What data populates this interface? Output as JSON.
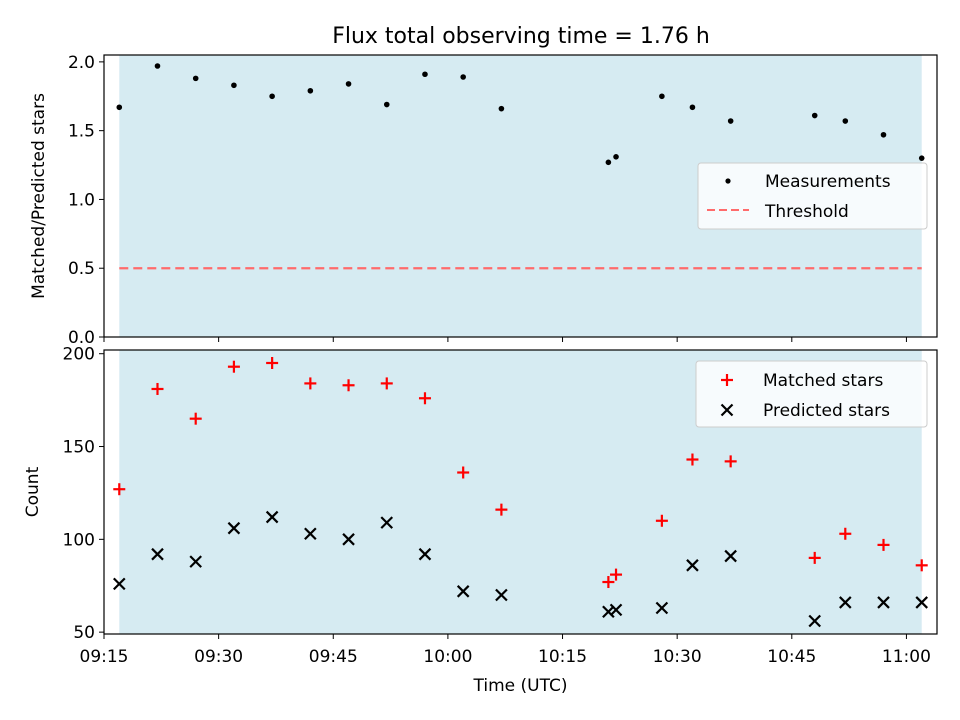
{
  "title": "Flux total observing time = 1.76 h",
  "shade_color": "#add8e6",
  "colors": {
    "measurement": "#000000",
    "threshold": "#ff6b6b",
    "matched": "#ff0000",
    "predicted": "#000000"
  },
  "chart_data": [
    {
      "type": "scatter",
      "panel": "top",
      "ylabel": "Matched/Predicted stars",
      "ylim": [
        0,
        2.05
      ],
      "yticks": [
        0,
        0.5,
        1.0,
        1.5,
        2.0
      ],
      "ytick_labels": [
        "0.0",
        "0.5",
        "1.0",
        "1.5",
        "2.0"
      ],
      "xlim": [
        "09:15",
        "11:04"
      ],
      "observing_window": [
        "09:17",
        "11:02"
      ],
      "threshold": 0.5,
      "legend": {
        "location": "center-right",
        "entries": [
          "Measurements",
          "Threshold"
        ]
      },
      "series": [
        {
          "name": "Measurements",
          "x": [
            "09:17",
            "09:22",
            "09:27",
            "09:32",
            "09:37",
            "09:42",
            "09:47",
            "09:52",
            "09:57",
            "10:02",
            "10:07",
            "10:21",
            "10:22",
            "10:28",
            "10:32",
            "10:37",
            "10:48",
            "10:52",
            "10:57",
            "11:02"
          ],
          "y": [
            1.67,
            1.97,
            1.88,
            1.83,
            1.75,
            1.79,
            1.84,
            1.69,
            1.91,
            1.89,
            1.66,
            1.27,
            1.31,
            1.75,
            1.67,
            1.57,
            1.61,
            1.57,
            1.47,
            1.3
          ]
        }
      ]
    },
    {
      "type": "scatter",
      "panel": "bottom",
      "ylabel": "Count",
      "xlabel": "Time (UTC)",
      "ylim": [
        49,
        202
      ],
      "yticks": [
        50,
        100,
        150,
        200
      ],
      "ytick_labels": [
        "50",
        "100",
        "150",
        "200"
      ],
      "xticks": [
        "09:15",
        "09:30",
        "09:45",
        "10:00",
        "10:15",
        "10:30",
        "10:45",
        "11:00"
      ],
      "xtick_labels": [
        "09:15",
        "09:30",
        "09:45",
        "10:00",
        "10:15",
        "10:30",
        "10:45",
        "11:00"
      ],
      "legend": {
        "location": "top-right",
        "entries": [
          "Matched stars",
          "Predicted stars"
        ]
      },
      "series": [
        {
          "name": "Matched stars",
          "marker": "+",
          "x": [
            "09:17",
            "09:22",
            "09:27",
            "09:32",
            "09:37",
            "09:42",
            "09:47",
            "09:52",
            "09:57",
            "10:02",
            "10:07",
            "10:21",
            "10:22",
            "10:28",
            "10:32",
            "10:37",
            "10:48",
            "10:52",
            "10:57",
            "11:02"
          ],
          "y": [
            127,
            181,
            165,
            193,
            195,
            184,
            183,
            184,
            176,
            136,
            116,
            77,
            81,
            110,
            143,
            142,
            90,
            103,
            97,
            86
          ]
        },
        {
          "name": "Predicted stars",
          "marker": "x",
          "x": [
            "09:17",
            "09:22",
            "09:27",
            "09:32",
            "09:37",
            "09:42",
            "09:47",
            "09:52",
            "09:57",
            "10:02",
            "10:07",
            "10:21",
            "10:22",
            "10:28",
            "10:32",
            "10:37",
            "10:48",
            "10:52",
            "10:57",
            "11:02"
          ],
          "y": [
            76,
            92,
            88,
            106,
            112,
            103,
            100,
            109,
            92,
            72,
            70,
            61,
            62,
            63,
            86,
            91,
            56,
            66,
            66,
            66
          ]
        }
      ]
    }
  ]
}
